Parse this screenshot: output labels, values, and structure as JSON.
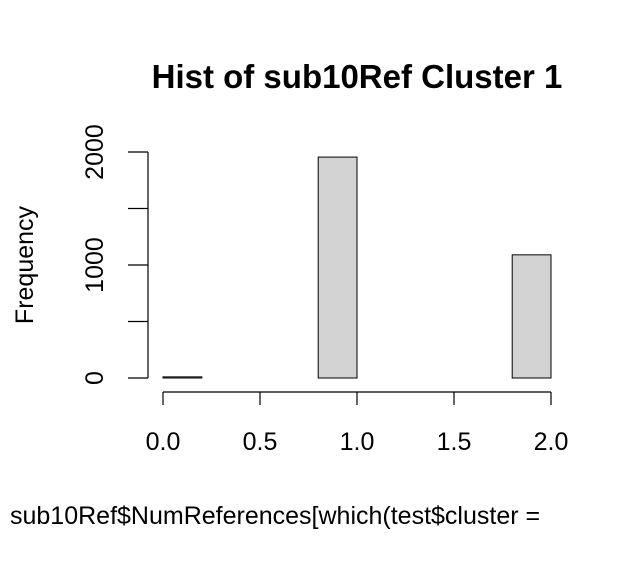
{
  "chart_data": {
    "type": "bar",
    "title": "Hist of sub10Ref Cluster 1",
    "xlabel": "sub10Ref$NumReferences[which(test$cluster =",
    "ylabel": "Frequency",
    "bins": [
      {
        "x0": 0.0,
        "x1": 0.2,
        "count": 10
      },
      {
        "x0": 0.2,
        "x1": 0.4,
        "count": 0
      },
      {
        "x0": 0.4,
        "x1": 0.6,
        "count": 0
      },
      {
        "x0": 0.6,
        "x1": 0.8,
        "count": 0
      },
      {
        "x0": 0.8,
        "x1": 1.0,
        "count": 1955
      },
      {
        "x0": 1.0,
        "x1": 1.2,
        "count": 0
      },
      {
        "x0": 1.2,
        "x1": 1.4,
        "count": 0
      },
      {
        "x0": 1.4,
        "x1": 1.6,
        "count": 0
      },
      {
        "x0": 1.6,
        "x1": 1.8,
        "count": 0
      },
      {
        "x0": 1.8,
        "x1": 2.0,
        "count": 1090
      }
    ],
    "x_ticks": [
      "0.0",
      "0.5",
      "1.0",
      "1.5",
      "2.0"
    ],
    "y_ticks": [
      "0",
      "1000",
      "2000"
    ],
    "y_minor_ticks": [
      500,
      1500
    ],
    "xlim": [
      0,
      2
    ],
    "ylim": [
      0,
      2000
    ],
    "bar_color": "#d3d3d3",
    "border_color": "#000000"
  }
}
